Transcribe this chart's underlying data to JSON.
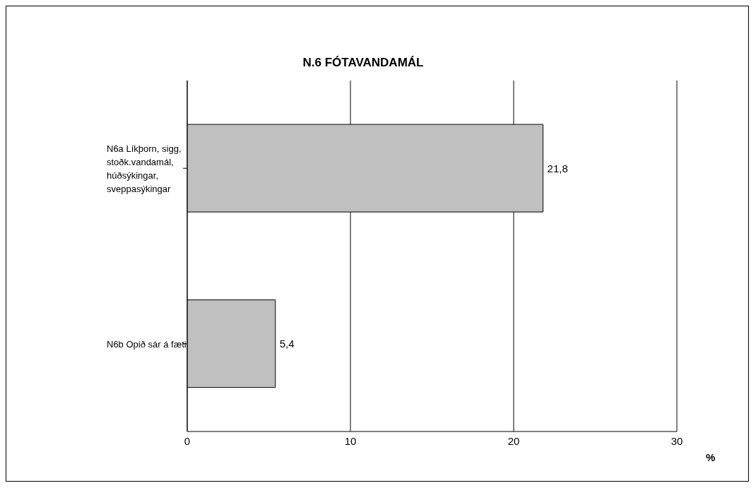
{
  "chart_data": {
    "type": "bar",
    "orientation": "horizontal",
    "title": "N.6 FÓTAVANDAMÁL",
    "xlabel": "%",
    "categories": [
      "N6a Líkþorn, sigg, stoðk.vandamál, húðsýkingar, sveppasýkingar",
      "N6b Opið sár á fæti"
    ],
    "values": [
      21.8,
      5.4
    ],
    "value_labels": [
      "21,8",
      "5,4"
    ],
    "color": "#c0c0c0",
    "xlim": [
      0,
      30
    ],
    "xticks": [
      0,
      10,
      20,
      30
    ],
    "grid": "x"
  }
}
